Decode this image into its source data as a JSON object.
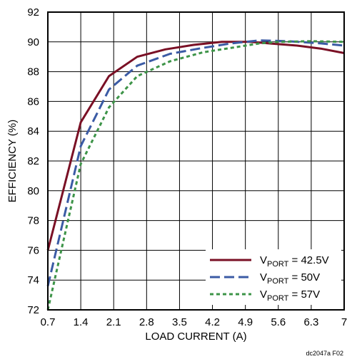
{
  "chart_data": {
    "type": "line",
    "xlabel": "LOAD CURRENT (A)",
    "ylabel": "EFFICIENCY (%)",
    "xlim": [
      0.7,
      7
    ],
    "ylim": [
      72,
      92
    ],
    "xticks": [
      "0.7",
      "1.4",
      "2.1",
      "2.8",
      "3.5",
      "4.2",
      "4.9",
      "5.6",
      "6.3",
      "7"
    ],
    "yticks": [
      "72",
      "74",
      "76",
      "78",
      "80",
      "82",
      "84",
      "86",
      "88",
      "90",
      "92"
    ],
    "grid": true,
    "legend_position": "bottom-right",
    "series": [
      {
        "legend_main": "V",
        "legend_sub": "PORT",
        "legend_rest": " = 42.5V",
        "color": "#7a1025",
        "dash": "solid",
        "x": [
          0.7,
          1.4,
          2.0,
          2.6,
          3.2,
          3.8,
          4.4,
          5.0,
          5.4,
          6.0,
          6.5,
          7.0
        ],
        "y": [
          76.0,
          84.6,
          87.7,
          89.0,
          89.5,
          89.8,
          90.0,
          90.0,
          89.9,
          89.75,
          89.55,
          89.25
        ]
      },
      {
        "legend_main": "V",
        "legend_sub": "PORT",
        "legend_rest": " = 50V",
        "color": "#3b5ba5",
        "dash": "long-dash",
        "x": [
          0.7,
          1.4,
          2.0,
          2.6,
          3.3,
          4.0,
          4.6,
          5.2,
          5.8,
          6.5,
          7.0
        ],
        "y": [
          73.6,
          83.0,
          86.8,
          88.4,
          89.2,
          89.6,
          89.9,
          90.1,
          90.05,
          89.9,
          89.75
        ]
      },
      {
        "legend_main": "V",
        "legend_sub": "PORT",
        "legend_rest": " = 57V",
        "color": "#3d9448",
        "dash": "short-dash",
        "x": [
          0.7,
          1.4,
          2.0,
          2.6,
          3.3,
          4.0,
          4.6,
          5.2,
          5.6,
          6.3,
          7.0
        ],
        "y": [
          72.0,
          81.8,
          85.6,
          87.7,
          88.7,
          89.3,
          89.6,
          89.9,
          90.0,
          90.05,
          90.0
        ]
      }
    ],
    "footnote": "dc2047a F02"
  }
}
